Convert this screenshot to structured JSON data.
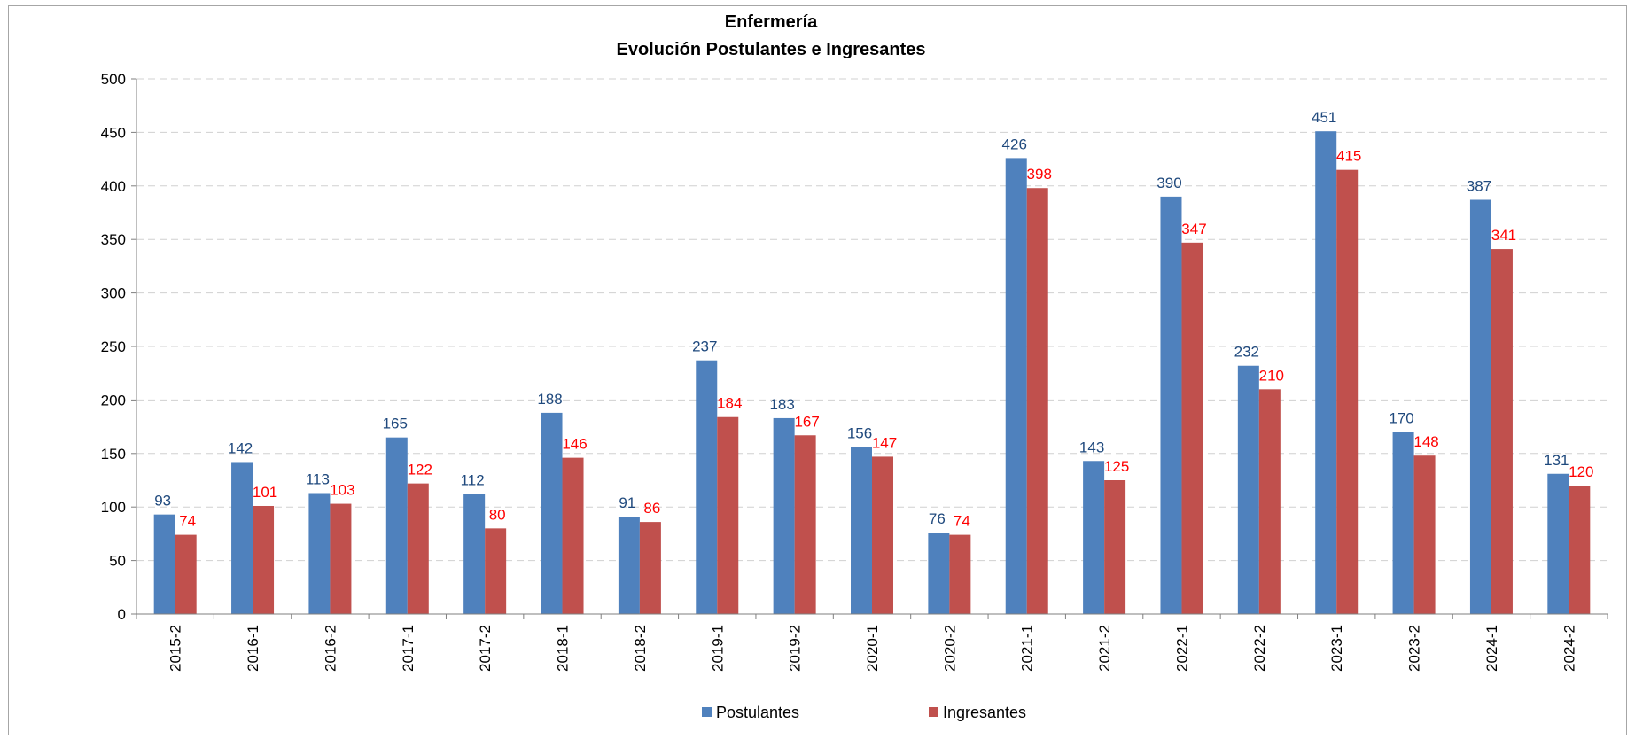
{
  "chart_data": {
    "type": "bar",
    "title": "Enfermería",
    "subtitle": "Evolución Postulantes e Ingresantes",
    "xlabel": "",
    "ylabel": "",
    "ylim": [
      0,
      500
    ],
    "yticks": [
      0,
      50,
      100,
      150,
      200,
      250,
      300,
      350,
      400,
      450,
      500
    ],
    "grid": true,
    "legend_position": "bottom",
    "categories": [
      "2015-2",
      "2016-1",
      "2016-2",
      "2017-1",
      "2017-2",
      "2018-1",
      "2018-2",
      "2019-1",
      "2019-2",
      "2020-1",
      "2020-2",
      "2021-1",
      "2021-2",
      "2022-1",
      "2022-2",
      "2023-1",
      "2023-2",
      "2024-1",
      "2024-2"
    ],
    "series": [
      {
        "name": "Postulantes",
        "color": "#4F81BD",
        "label_color": "#1F497D",
        "values": [
          93,
          142,
          113,
          165,
          112,
          188,
          91,
          237,
          183,
          156,
          76,
          426,
          143,
          390,
          232,
          451,
          170,
          387,
          131
        ]
      },
      {
        "name": "Ingresantes",
        "color": "#C0504D",
        "label_color": "#FF0000",
        "values": [
          74,
          101,
          103,
          122,
          80,
          146,
          86,
          184,
          167,
          147,
          74,
          398,
          125,
          347,
          210,
          415,
          148,
          341,
          120
        ]
      }
    ]
  }
}
